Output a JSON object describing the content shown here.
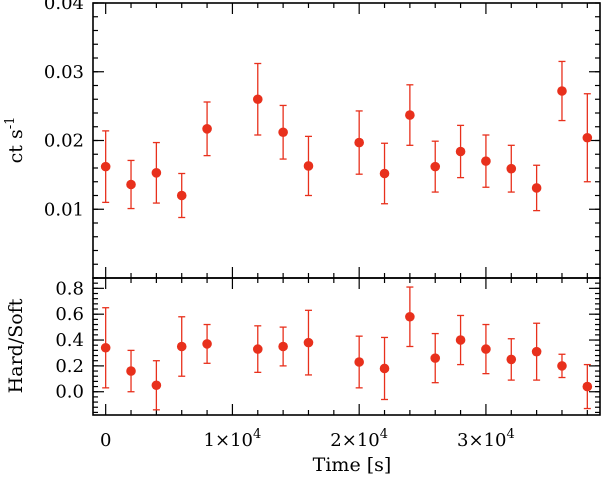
{
  "chart_data": [
    {
      "type": "scatter",
      "panel": "top",
      "ylabel": "ct s",
      "ylabel_sup": "-1",
      "xlim": [
        -1000,
        39000
      ],
      "ylim": [
        0.0,
        0.04
      ],
      "yticks": [
        {
          "value": 0.01,
          "label": "0.01"
        },
        {
          "value": 0.02,
          "label": "0.02"
        },
        {
          "value": 0.03,
          "label": "0.03"
        },
        {
          "value": 0.04,
          "label": "0.04"
        }
      ],
      "color": "#e8301c",
      "points": [
        {
          "x": 0,
          "y": 0.0162,
          "err": 0.0052
        },
        {
          "x": 2000,
          "y": 0.0136,
          "err": 0.0035
        },
        {
          "x": 4000,
          "y": 0.0153,
          "err": 0.0044
        },
        {
          "x": 6000,
          "y": 0.012,
          "err": 0.0032
        },
        {
          "x": 8000,
          "y": 0.0217,
          "err": 0.0039
        },
        {
          "x": 12000,
          "y": 0.026,
          "err": 0.0052
        },
        {
          "x": 14000,
          "y": 0.0212,
          "err": 0.0039
        },
        {
          "x": 16000,
          "y": 0.0163,
          "err": 0.0043
        },
        {
          "x": 20000,
          "y": 0.0197,
          "err": 0.0046
        },
        {
          "x": 22000,
          "y": 0.0152,
          "err": 0.0044
        },
        {
          "x": 24000,
          "y": 0.0237,
          "err": 0.0044
        },
        {
          "x": 26000,
          "y": 0.0162,
          "err": 0.0037
        },
        {
          "x": 28000,
          "y": 0.0184,
          "err": 0.0038
        },
        {
          "x": 30000,
          "y": 0.017,
          "err": 0.0038
        },
        {
          "x": 32000,
          "y": 0.0159,
          "err": 0.0034
        },
        {
          "x": 34000,
          "y": 0.0131,
          "err": 0.0033
        },
        {
          "x": 36000,
          "y": 0.0272,
          "err": 0.0043
        },
        {
          "x": 38000,
          "y": 0.0204,
          "err": 0.0064
        }
      ]
    },
    {
      "type": "scatter",
      "panel": "bottom",
      "ylabel": "Hard/Soft",
      "xlabel": "Time [s]",
      "xlim": [
        -1000,
        39000
      ],
      "ylim": [
        -0.18,
        0.88
      ],
      "yticks": [
        {
          "value": 0.0,
          "label": "0.0"
        },
        {
          "value": 0.2,
          "label": "0.2"
        },
        {
          "value": 0.4,
          "label": "0.4"
        },
        {
          "value": 0.6,
          "label": "0.6"
        },
        {
          "value": 0.8,
          "label": "0.8"
        }
      ],
      "xticks": [
        {
          "value": 0,
          "label": "0"
        },
        {
          "value": 10000,
          "label": "1×10",
          "sup": "4"
        },
        {
          "value": 20000,
          "label": "2×10",
          "sup": "4"
        },
        {
          "value": 30000,
          "label": "3×10",
          "sup": "4"
        }
      ],
      "color": "#e8301c",
      "points": [
        {
          "x": 0,
          "y": 0.34,
          "err": 0.31
        },
        {
          "x": 2000,
          "y": 0.16,
          "err": 0.16
        },
        {
          "x": 4000,
          "y": 0.05,
          "err": 0.19
        },
        {
          "x": 6000,
          "y": 0.35,
          "err": 0.23
        },
        {
          "x": 8000,
          "y": 0.37,
          "err": 0.15
        },
        {
          "x": 12000,
          "y": 0.33,
          "err": 0.18
        },
        {
          "x": 14000,
          "y": 0.35,
          "err": 0.15
        },
        {
          "x": 16000,
          "y": 0.38,
          "err": 0.25
        },
        {
          "x": 20000,
          "y": 0.23,
          "err": 0.2
        },
        {
          "x": 22000,
          "y": 0.18,
          "err": 0.24
        },
        {
          "x": 24000,
          "y": 0.58,
          "err": 0.23
        },
        {
          "x": 26000,
          "y": 0.26,
          "err": 0.19
        },
        {
          "x": 28000,
          "y": 0.4,
          "err": 0.19
        },
        {
          "x": 30000,
          "y": 0.33,
          "err": 0.19
        },
        {
          "x": 32000,
          "y": 0.25,
          "err": 0.16
        },
        {
          "x": 34000,
          "y": 0.31,
          "err": 0.22
        },
        {
          "x": 36000,
          "y": 0.2,
          "err": 0.09
        },
        {
          "x": 38000,
          "y": 0.04,
          "err": 0.17
        }
      ]
    }
  ]
}
